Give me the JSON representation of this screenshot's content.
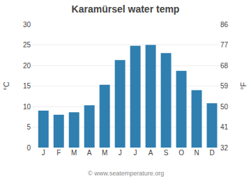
{
  "chart_data": {
    "type": "bar",
    "title": "Karamürsel water temp",
    "categories": [
      "J",
      "F",
      "M",
      "A",
      "M",
      "J",
      "J",
      "A",
      "S",
      "O",
      "N",
      "D"
    ],
    "values": [
      9.0,
      8.0,
      8.6,
      10.3,
      15.3,
      21.3,
      24.8,
      25.0,
      23.0,
      18.7,
      14.0,
      10.8
    ],
    "color": "#2f7fb0",
    "ylabel": "°C",
    "y2label": "°F",
    "ylim": [
      0,
      30
    ],
    "yticks": [
      0,
      5,
      10,
      15,
      20,
      25,
      30
    ],
    "y2lim": [
      32,
      86
    ],
    "y2ticks": [
      32,
      41,
      50,
      59,
      68,
      77,
      86
    ],
    "grid": true,
    "annotations": [
      "© www.seatemperature.org"
    ]
  }
}
